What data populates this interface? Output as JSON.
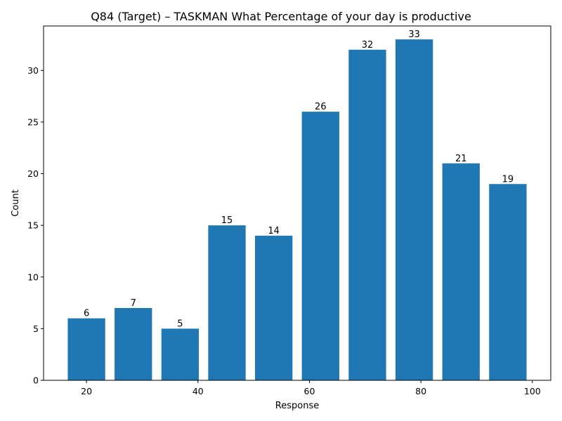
{
  "chart_data": {
    "type": "bar",
    "title": "Q84 (Target) – TASKMAN What Percentage of your day is productive",
    "xlabel": "Response",
    "ylabel": "Count",
    "x": [
      20,
      28.4,
      36.8,
      45.2,
      53.6,
      62,
      70.4,
      78.8,
      87.2,
      95.6
    ],
    "values": [
      6,
      7,
      5,
      15,
      14,
      26,
      32,
      33,
      21,
      19
    ],
    "data_labels": [
      "6",
      "7",
      "5",
      "15",
      "14",
      "26",
      "32",
      "33",
      "21",
      "19"
    ],
    "xlim": [
      12.3,
      103.3
    ],
    "ylim": [
      0,
      34.3
    ],
    "xticks": [
      20,
      40,
      60,
      80,
      100
    ],
    "xtick_labels": [
      "20",
      "40",
      "60",
      "80",
      "100"
    ],
    "yticks": [
      0,
      5,
      10,
      15,
      20,
      25,
      30
    ],
    "ytick_labels": [
      "0",
      "5",
      "10",
      "15",
      "20",
      "25",
      "30"
    ],
    "bar_width": 6.72,
    "bar_color": "#1f77b4",
    "grid": false
  }
}
